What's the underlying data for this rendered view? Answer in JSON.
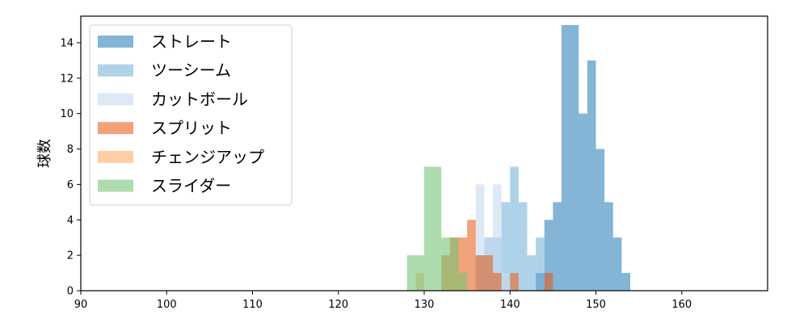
{
  "chart_data": {
    "type": "histogram",
    "title": "",
    "xlabel": "",
    "ylabel": "球数",
    "xlim": [
      90,
      170
    ],
    "ylim": [
      0,
      15.5
    ],
    "xticks": [
      90,
      100,
      110,
      120,
      130,
      140,
      150,
      160
    ],
    "yticks": [
      0,
      2,
      4,
      6,
      8,
      10,
      12,
      14
    ],
    "bin_width": 1,
    "grid": false,
    "legend_position": "top-left",
    "series": [
      {
        "name": "ストレート",
        "color": "#1f77b4",
        "opacity": 0.55,
        "bins": [
          [
            143,
            1
          ],
          [
            144,
            4
          ],
          [
            145,
            5
          ],
          [
            146,
            15
          ],
          [
            147,
            15
          ],
          [
            148,
            10
          ],
          [
            149,
            13
          ],
          [
            150,
            8
          ],
          [
            151,
            5
          ],
          [
            152,
            3
          ],
          [
            153,
            1
          ]
        ]
      },
      {
        "name": "ツーシーム",
        "color": "#6baed6",
        "opacity": 0.55,
        "bins": [
          [
            136,
            2
          ],
          [
            137,
            3
          ],
          [
            138,
            3
          ],
          [
            139,
            5
          ],
          [
            140,
            7
          ],
          [
            141,
            5
          ],
          [
            142,
            2
          ],
          [
            143,
            3
          ]
        ]
      },
      {
        "name": "カットボール",
        "color": "#c6dbef",
        "opacity": 0.6,
        "bins": [
          [
            136,
            6
          ],
          [
            137,
            3
          ],
          [
            138,
            6
          ],
          [
            139,
            1
          ],
          [
            140,
            1
          ]
        ]
      },
      {
        "name": "スプリット",
        "color": "#e6550d",
        "opacity": 0.55,
        "bins": [
          [
            132,
            2
          ],
          [
            133,
            3
          ],
          [
            134,
            3
          ],
          [
            135,
            4
          ],
          [
            136,
            2
          ],
          [
            137,
            2
          ],
          [
            138,
            1
          ],
          [
            140,
            1
          ],
          [
            144,
            1
          ]
        ]
      },
      {
        "name": "チェンジアップ",
        "color": "#fdae6b",
        "opacity": 0.6,
        "bins": [
          [
            129,
            1
          ],
          [
            132,
            1
          ],
          [
            133,
            1
          ]
        ]
      },
      {
        "name": "スライダー",
        "color": "#74c476",
        "opacity": 0.6,
        "bins": [
          [
            128,
            2
          ],
          [
            129,
            2
          ],
          [
            130,
            7
          ],
          [
            131,
            7
          ],
          [
            132,
            3
          ],
          [
            133,
            3
          ],
          [
            134,
            1
          ]
        ]
      }
    ]
  }
}
